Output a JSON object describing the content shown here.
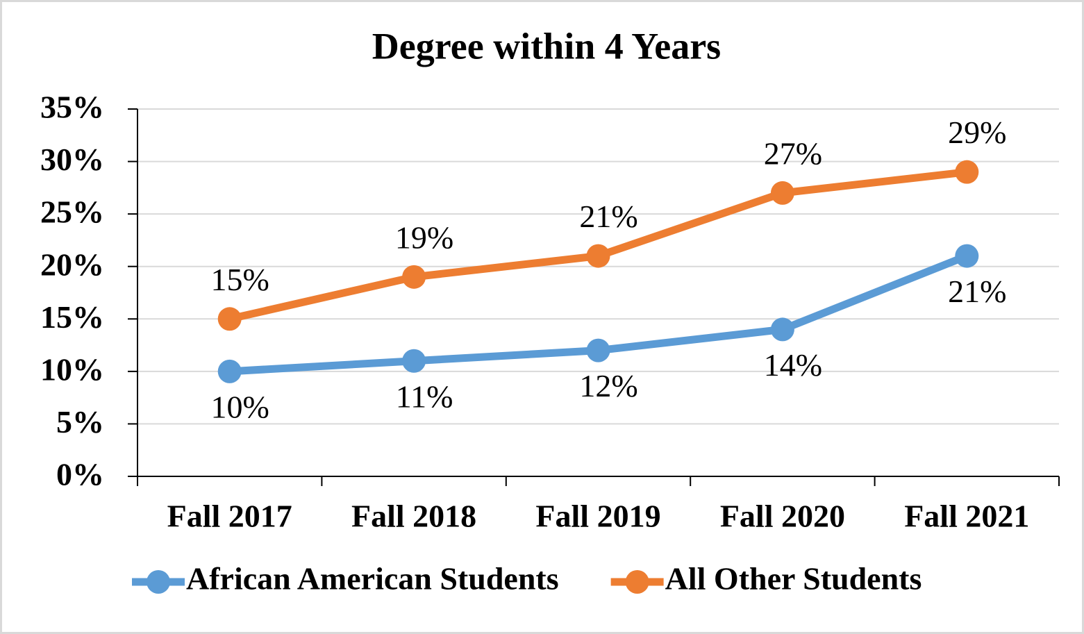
{
  "chart_data": {
    "type": "line",
    "title": "Degree within 4 Years",
    "categories": [
      "Fall 2017",
      "Fall 2018",
      "Fall 2019",
      "Fall 2020",
      "Fall 2021"
    ],
    "series": [
      {
        "name": "African American Students",
        "color": "#5b9bd5",
        "values": [
          10,
          11,
          12,
          14,
          21
        ],
        "value_labels": [
          "10%",
          "11%",
          "12%",
          "14%",
          "21%"
        ],
        "label_position": "below"
      },
      {
        "name": "All Other Students",
        "color": "#ed7d31",
        "values": [
          15,
          19,
          21,
          27,
          29
        ],
        "value_labels": [
          "15%",
          "19%",
          "21%",
          "27%",
          "29%"
        ],
        "label_position": "above"
      }
    ],
    "ylim": [
      0,
      35
    ],
    "yticks": [
      {
        "value": 0,
        "label": "0%"
      },
      {
        "value": 5,
        "label": "5%"
      },
      {
        "value": 10,
        "label": "10%"
      },
      {
        "value": 15,
        "label": "15%"
      },
      {
        "value": 20,
        "label": "20%"
      },
      {
        "value": 25,
        "label": "25%"
      },
      {
        "value": 30,
        "label": "30%"
      },
      {
        "value": 35,
        "label": "35%"
      }
    ],
    "grid": true,
    "legend": "bottom"
  }
}
